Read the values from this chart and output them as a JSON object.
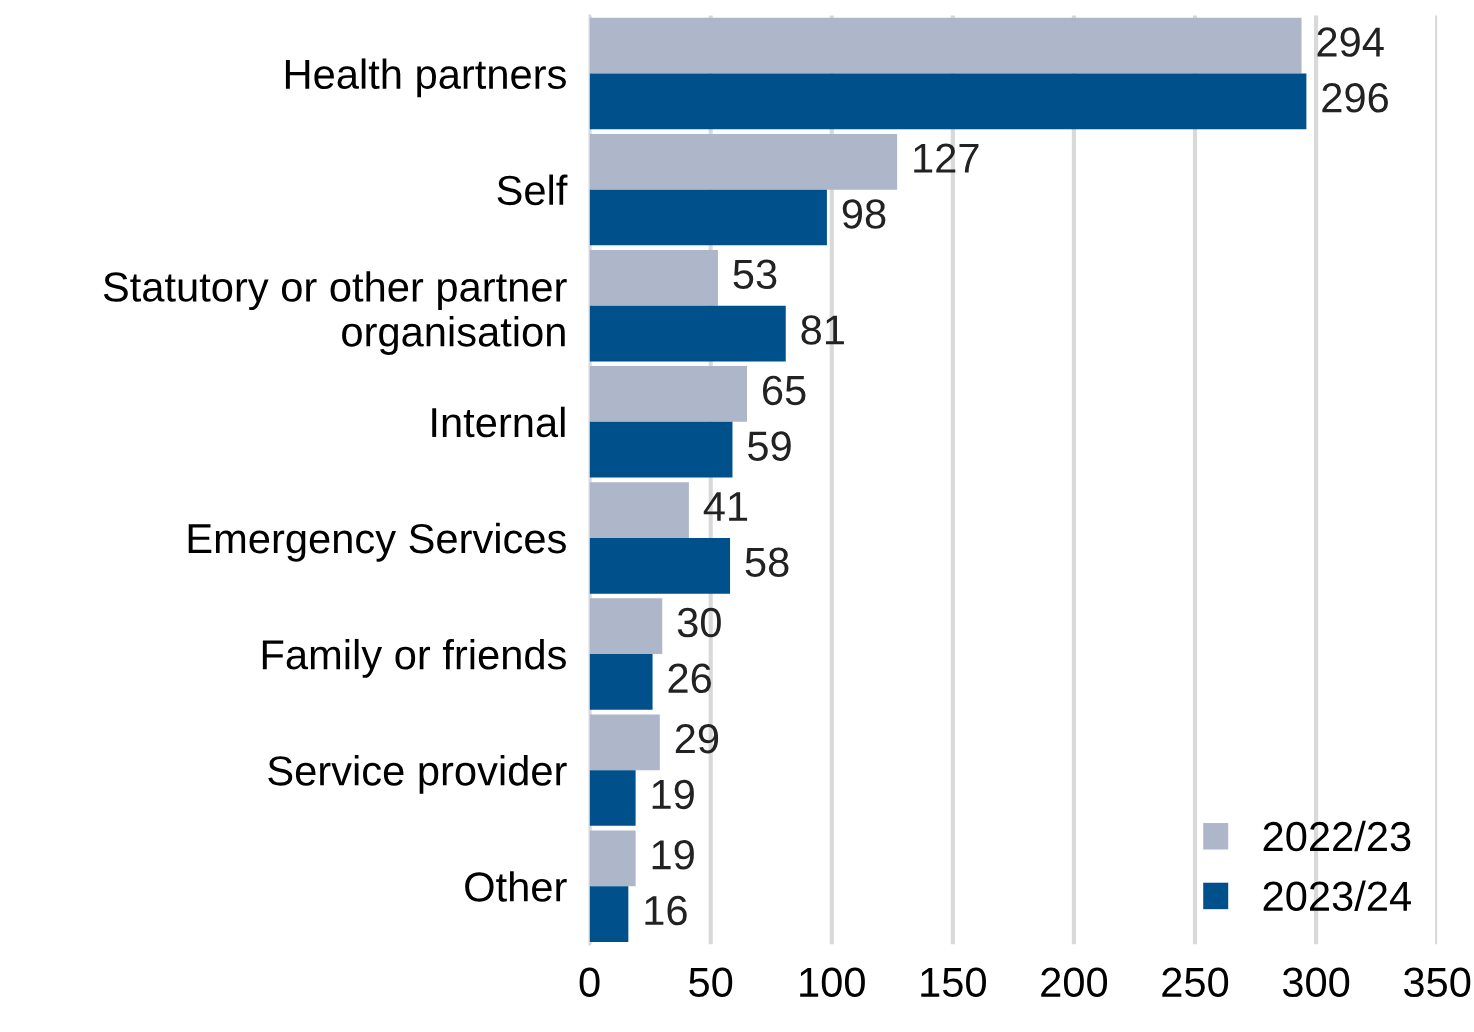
{
  "chart_data": {
    "type": "bar",
    "orientation": "horizontal",
    "categories": [
      "Health partners",
      "Self",
      "Statutory or other partner\norganisation",
      "Internal",
      "Emergency Services",
      "Family or friends",
      "Service provider",
      "Other"
    ],
    "series": [
      {
        "name": "2022/23",
        "color": "#aeb6c9",
        "values": [
          294,
          127,
          53,
          65,
          41,
          30,
          29,
          19
        ]
      },
      {
        "name": "2023/24",
        "color": "#00508c",
        "values": [
          296,
          98,
          81,
          59,
          58,
          26,
          19,
          16
        ]
      }
    ],
    "xlim": [
      0,
      350
    ],
    "xticks": [
      0,
      50,
      100,
      150,
      200,
      250,
      300,
      350
    ],
    "grid": "x",
    "legend": "bottom right",
    "data_labels": true
  }
}
